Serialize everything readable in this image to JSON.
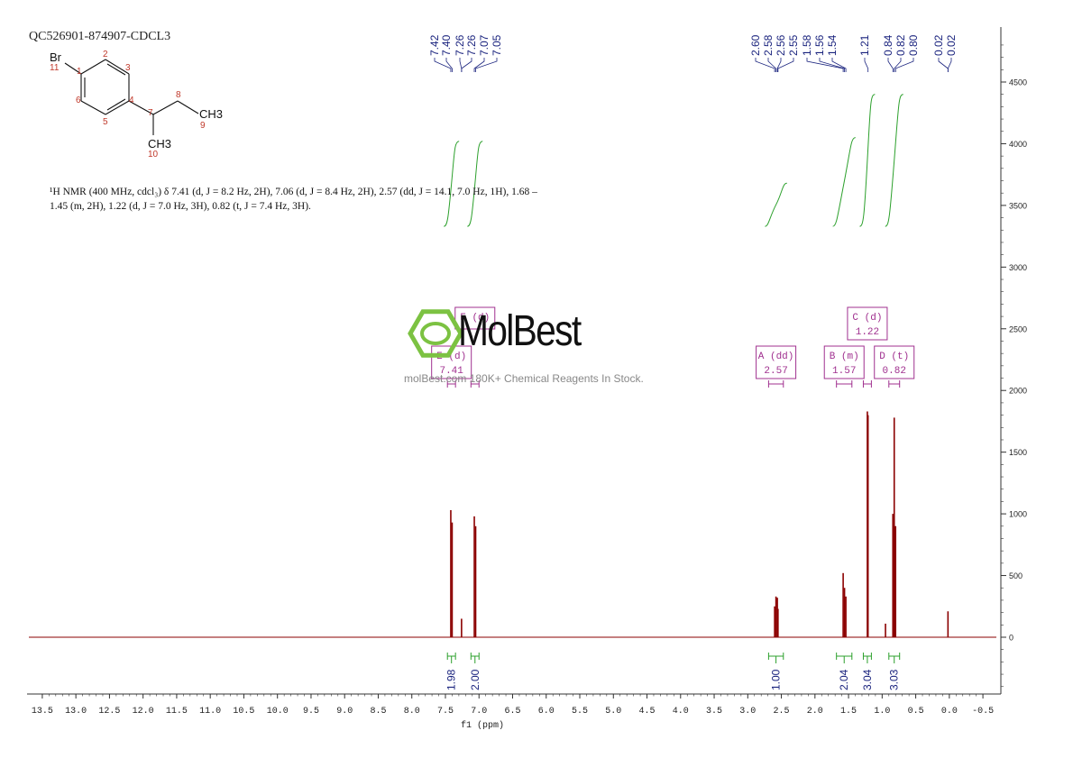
{
  "sample_id": "QC526901-874907-CDCL3",
  "nmr_description": "¹H NMR (400 MHz, cdcl₃) δ 7.41 (d, J = 8.2 Hz, 2H), 7.06 (d, J = 8.4 Hz, 2H), 2.57 (dd, J = 14.1, 7.0 Hz, 1H), 1.68 – 1.45 (m, 2H), 1.22 (d, J = 7.0 Hz, 3H), 0.82 (t, J = 7.4 Hz, 3H).",
  "watermark": {
    "logo_text": "MolBest",
    "tagline": "molBest.com 180K+ Chemical Reagents In Stock."
  },
  "molecule": {
    "atom_labels": [
      "Br",
      "11",
      "1",
      "2",
      "3",
      "4",
      "5",
      "6",
      "7",
      "8",
      "CH3",
      "9",
      "CH3",
      "10"
    ]
  },
  "chart_data": {
    "type": "line",
    "xlabel": "f1 (ppm)",
    "xlim": [
      13.7,
      -0.7
    ],
    "ylim": [
      -450,
      4900
    ],
    "x_ticks": [
      "13.5",
      "13.0",
      "12.5",
      "12.0",
      "11.5",
      "11.0",
      "10.5",
      "10.0",
      "9.5",
      "9.0",
      "8.5",
      "8.0",
      "7.5",
      "7.0",
      "6.5",
      "6.0",
      "5.5",
      "5.0",
      "4.5",
      "4.0",
      "3.5",
      "3.0",
      "2.5",
      "2.0",
      "1.5",
      "1.0",
      "0.5",
      "0.0",
      "-0.5"
    ],
    "y_ticks": [
      "0",
      "500",
      "1000",
      "1500",
      "2000",
      "2500",
      "3000",
      "3500",
      "4000",
      "4500"
    ],
    "peaks": [
      {
        "ppm": 7.42,
        "height": 1030
      },
      {
        "ppm": 7.4,
        "height": 930
      },
      {
        "ppm": 7.26,
        "height": 150
      },
      {
        "ppm": 7.07,
        "height": 980
      },
      {
        "ppm": 7.05,
        "height": 900
      },
      {
        "ppm": 2.6,
        "height": 250
      },
      {
        "ppm": 2.58,
        "height": 330
      },
      {
        "ppm": 2.56,
        "height": 320
      },
      {
        "ppm": 2.55,
        "height": 230
      },
      {
        "ppm": 1.58,
        "height": 520
      },
      {
        "ppm": 1.56,
        "height": 400
      },
      {
        "ppm": 1.54,
        "height": 330
      },
      {
        "ppm": 1.22,
        "height": 1830
      },
      {
        "ppm": 1.21,
        "height": 1800
      },
      {
        "ppm": 0.84,
        "height": 1000
      },
      {
        "ppm": 0.82,
        "height": 1780
      },
      {
        "ppm": 0.8,
        "height": 900
      },
      {
        "ppm": 0.95,
        "height": 110
      },
      {
        "ppm": 0.02,
        "height": 210
      }
    ],
    "peak_labels": [
      "7.42",
      "7.40",
      "7.26",
      "7.26",
      "7.07",
      "7.05",
      "2.60",
      "2.58",
      "2.56",
      "2.55",
      "1.58",
      "1.56",
      "1.54",
      "1.21",
      "0.84",
      "0.82",
      "0.80",
      "0.02",
      "0.02"
    ],
    "peak_label_groups": [
      {
        "labels": [
          "7.42",
          "7.40",
          "7.26",
          "7.26",
          "7.07",
          "7.05"
        ],
        "ppm_range": [
          7.55,
          6.95
        ]
      },
      {
        "labels": [
          "2.60",
          "2.58",
          "2.56",
          "2.55",
          "1.58",
          "1.56",
          "1.54"
        ],
        "ppm_range": [
          2.82,
          1.4
        ]
      },
      {
        "labels": [
          "1.21"
        ],
        "ppm_range": [
          1.21,
          1.21
        ]
      },
      {
        "labels": [
          "0.84",
          "0.82",
          "0.80"
        ],
        "ppm_range": [
          0.98,
          0.68
        ]
      },
      {
        "labels": [
          "0.02",
          "0.02"
        ],
        "ppm_range": [
          0.1,
          -0.05
        ]
      }
    ],
    "multiplets": [
      {
        "letter": "A (dd)",
        "shift": "2.57",
        "from": 2.69,
        "to": 2.47
      },
      {
        "letter": "B (m)",
        "shift": "1.57",
        "from": 1.68,
        "to": 1.45
      },
      {
        "letter": "C (d)",
        "shift": "1.22",
        "from": 1.28,
        "to": 1.16
      },
      {
        "letter": "D (t)",
        "shift": "0.82",
        "from": 0.9,
        "to": 0.74
      },
      {
        "letter": "E (d)",
        "shift": "7.41",
        "from": 7.47,
        "to": 7.35
      },
      {
        "letter": "F (d)",
        "shift": "",
        "from": 7.12,
        "to": 7.0
      }
    ],
    "integrations": [
      {
        "value": "1.98",
        "from": 7.47,
        "to": 7.35,
        "start": 3330,
        "end": 4020
      },
      {
        "value": "2.00",
        "from": 7.12,
        "to": 7.0,
        "start": 3330,
        "end": 4020
      },
      {
        "value": "1.00",
        "from": 2.69,
        "to": 2.47,
        "start": 3330,
        "end": 3680
      },
      {
        "value": "2.04",
        "from": 1.68,
        "to": 1.45,
        "start": 3330,
        "end": 4050
      },
      {
        "value": "3.04",
        "from": 1.28,
        "to": 1.16,
        "start": 3330,
        "end": 4400
      },
      {
        "value": "3.03",
        "from": 0.9,
        "to": 0.74,
        "start": 3330,
        "end": 4400
      }
    ],
    "colors": {
      "spectrum": "#8b0000",
      "integral": "#2ca02c",
      "peak_label": "#1a237e",
      "multiplet_box": "#a0308f",
      "axis": "#333333"
    }
  }
}
